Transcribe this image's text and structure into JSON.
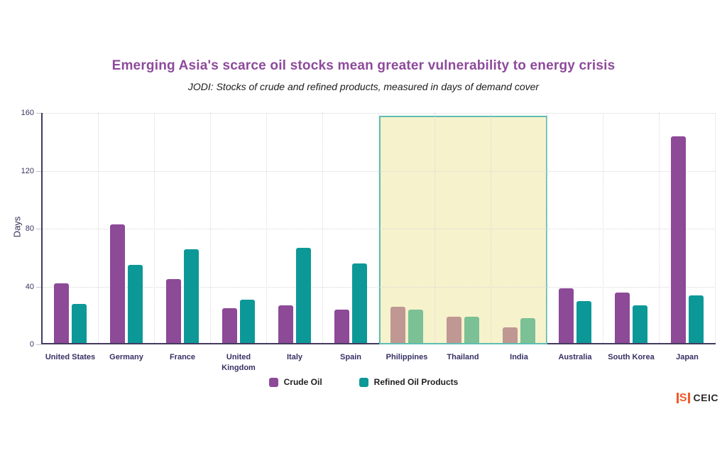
{
  "header": {
    "title": "Emerging Asia's scarce oil stocks mean greater vulnerability to energy crisis",
    "subtitle": "JODI: Stocks of crude and refined products, measured in days of demand cover"
  },
  "chart_data": {
    "type": "bar",
    "title": "Emerging Asia's scarce oil stocks mean greater vulnerability to energy crisis",
    "subtitle": "JODI: Stocks of crude and refined products, measured in days of demand cover",
    "xlabel": "",
    "ylabel": "Days",
    "ylim": [
      0,
      160
    ],
    "yticks": [
      0,
      40,
      80,
      120,
      160
    ],
    "grid": "dotted horizontal gridlines at yticks and dotted vertical category separators",
    "legend_position": "bottom-center",
    "categories": [
      "United States",
      "Germany",
      "France",
      "United Kingdom",
      "Italy",
      "Spain",
      "Philippines",
      "Thailand",
      "India",
      "Australia",
      "South Korea",
      "Japan"
    ],
    "two_line_labels": [
      "United Kingdom"
    ],
    "series": [
      {
        "name": "Crude Oil",
        "color": "#8c4a97",
        "muted_color": "#bf9793",
        "values": [
          41,
          82,
          44,
          24,
          26,
          23,
          25,
          18,
          11,
          38,
          35,
          143
        ]
      },
      {
        "name": "Refined Oil Products",
        "color": "#0d9898",
        "muted_color": "#7cc096",
        "values": [
          27,
          54,
          65,
          30,
          66,
          55,
          23,
          18,
          17,
          29,
          26,
          33
        ]
      }
    ],
    "highlight": {
      "label": "Emerging Asia highlighted region",
      "categories": [
        "Philippines",
        "Thailand",
        "India"
      ],
      "start_index": 6,
      "end_index": 8,
      "top_value": 158,
      "fill": "#f6f2cc",
      "border": "#5fbdb4"
    },
    "axis_color": "#443a5f"
  },
  "legend": {
    "items": [
      {
        "label": "Crude Oil",
        "color": "#8c4a97"
      },
      {
        "label": "Refined Oil Products",
        "color": "#0d9898"
      }
    ]
  },
  "branding": {
    "mark_letter": "S",
    "mark_color": "#f15a29",
    "logo_text": "CEIC"
  }
}
